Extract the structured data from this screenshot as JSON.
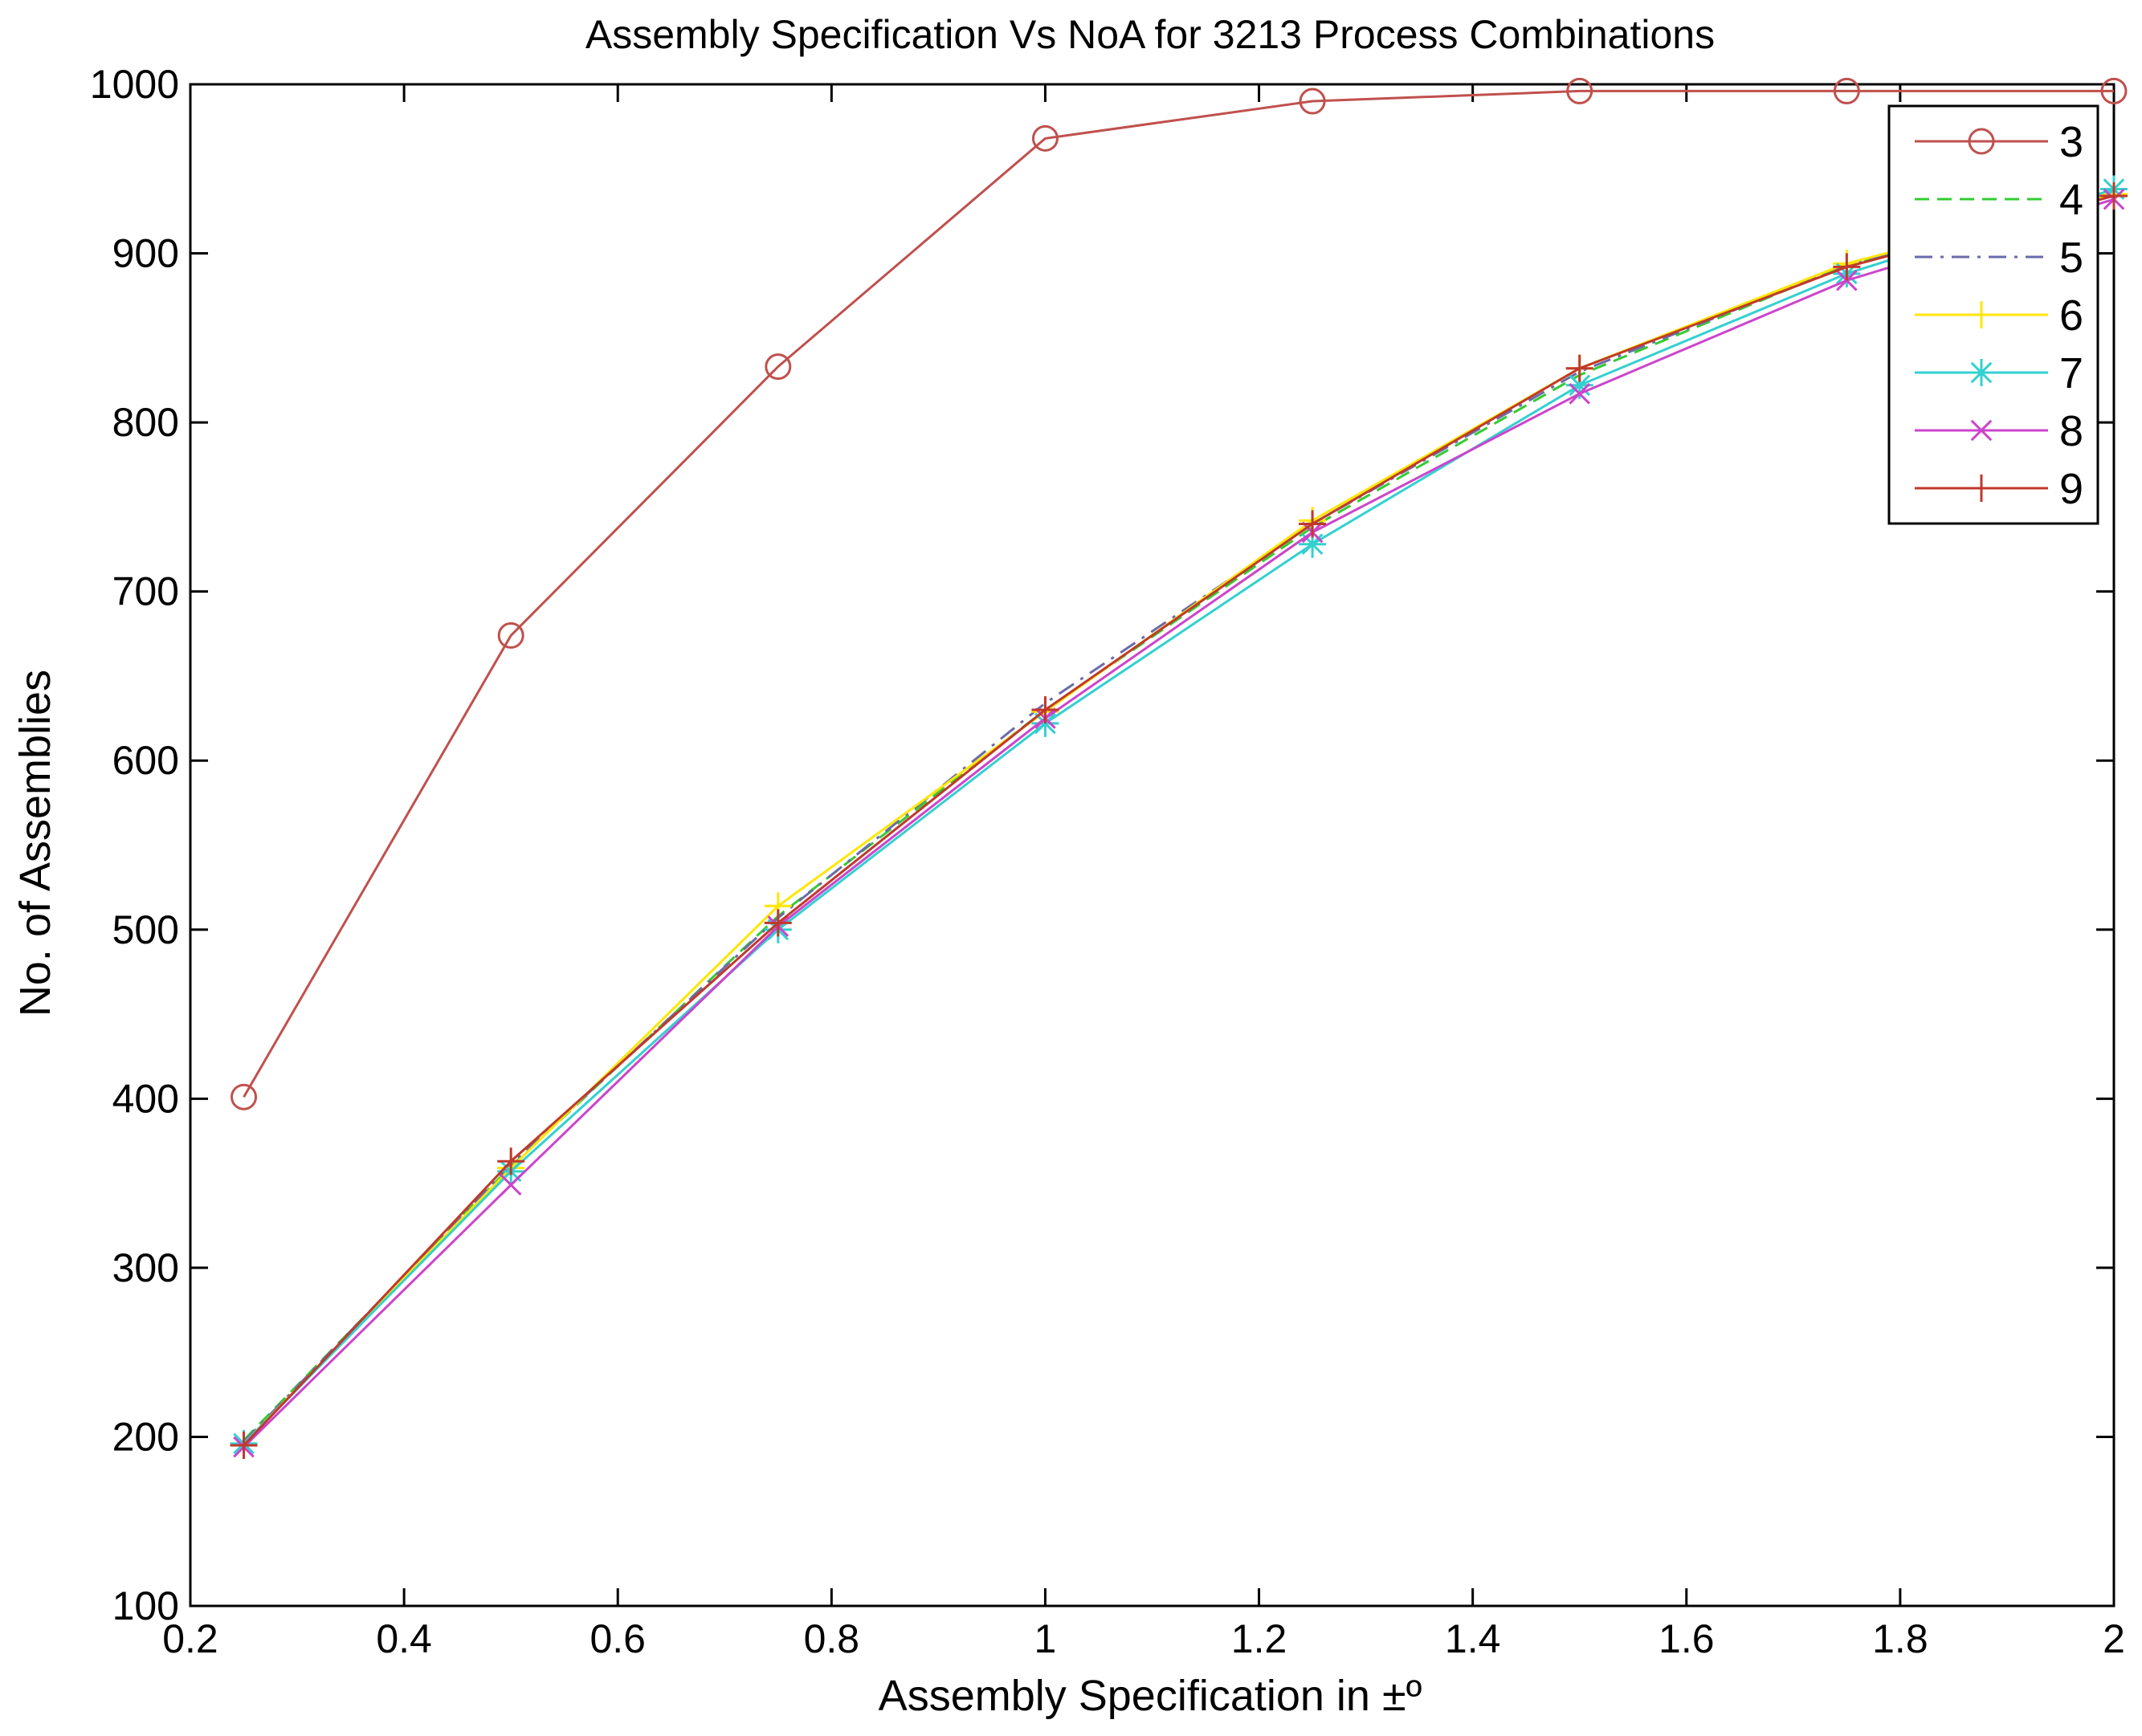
{
  "chart_data": {
    "type": "line",
    "title": "Assembly Specification Vs NoA for 3213 Process Combinations",
    "xlabel": "Assembly Specification in ±º",
    "ylabel": "No. of Assemblies",
    "xlim": [
      0.2,
      2
    ],
    "ylim": [
      100,
      1000
    ],
    "x_ticks": [
      "0.2",
      "0.4",
      "0.6",
      "0.8",
      "1",
      "1.2",
      "1.4",
      "1.6",
      "1.8",
      "2"
    ],
    "y_ticks": [
      "100",
      "200",
      "300",
      "400",
      "500",
      "600",
      "700",
      "800",
      "900",
      "1000"
    ],
    "grid": false,
    "legend_position": "top-right",
    "x": [
      0.25,
      0.5,
      0.75,
      1.0,
      1.25,
      1.5,
      1.75,
      2.0
    ],
    "series": [
      {
        "name": "3",
        "color": "#c0504d",
        "dash": "solid",
        "marker": "circle",
        "values": [
          401,
          674,
          833,
          968,
          990,
          996,
          996,
          996
        ]
      },
      {
        "name": "4",
        "color": "#33cc33",
        "dash": "dashed",
        "marker": "none",
        "values": [
          198,
          360,
          508,
          630,
          738,
          828,
          893,
          937
        ]
      },
      {
        "name": "5",
        "color": "#6a6aaa",
        "dash": "dashdot",
        "marker": "none",
        "values": [
          197,
          361,
          507,
          634,
          740,
          830,
          893,
          936
        ]
      },
      {
        "name": "6",
        "color": "#ffe600",
        "dash": "solid",
        "marker": "plus",
        "values": [
          196,
          359,
          514,
          629,
          742,
          832,
          894,
          935
        ]
      },
      {
        "name": "7",
        "color": "#33d0d0",
        "dash": "solid",
        "marker": "asterisk",
        "values": [
          196,
          357,
          500,
          622,
          728,
          822,
          888,
          938
        ]
      },
      {
        "name": "8",
        "color": "#cc44cc",
        "dash": "solid",
        "marker": "cross",
        "values": [
          194,
          349,
          502,
          625,
          735,
          817,
          884,
          932
        ]
      },
      {
        "name": "9",
        "color": "#c0392b",
        "dash": "solid",
        "marker": "plus",
        "values": [
          195,
          363,
          504,
          630,
          740,
          832,
          892,
          934
        ]
      }
    ]
  }
}
